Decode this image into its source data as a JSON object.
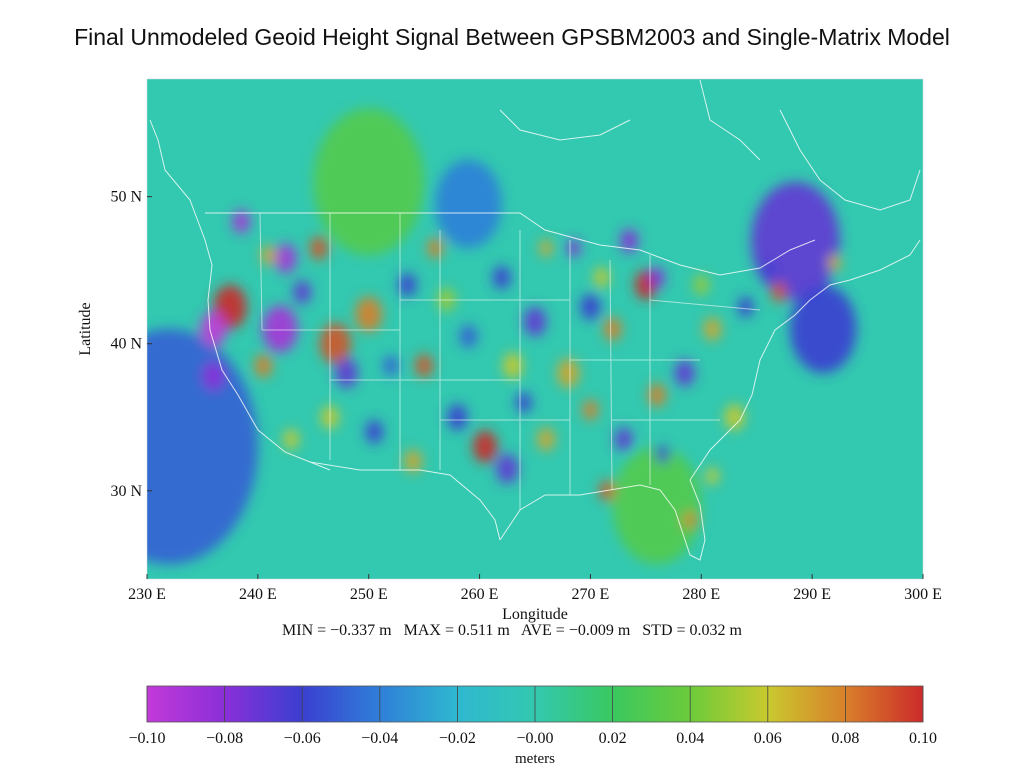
{
  "title": "Final Unmodeled Geoid Height Signal Between GPSBM2003 and Single-Matrix Model",
  "chart_data": {
    "type": "heatmap",
    "title": "Final Unmodeled Geoid Height Signal Between GPSBM2003 and Single-Matrix Model",
    "xlabel": "Longitude",
    "ylabel": "Latitude",
    "x_ticks": [
      "230 E",
      "240 E",
      "250 E",
      "260 E",
      "270 E",
      "280 E",
      "290 E",
      "300 E"
    ],
    "x_tick_values": [
      230,
      240,
      250,
      260,
      270,
      280,
      290,
      300
    ],
    "y_ticks": [
      "50 N",
      "40 N",
      "30 N"
    ],
    "y_tick_values": [
      50,
      40,
      30
    ],
    "xlim": [
      230,
      300
    ],
    "ylim": [
      24,
      58
    ],
    "stats": {
      "min": "MIN = −0.337 m",
      "max": "MAX = 0.511 m",
      "ave": "AVE = −0.009 m",
      "std": "STD = 0.032 m"
    },
    "colorbar": {
      "label": "meters",
      "range": [
        -0.1,
        0.1
      ],
      "ticks": [
        "−0.10",
        "−0.08",
        "−0.06",
        "−0.04",
        "−0.02",
        "−0.00",
        "0.02",
        "0.04",
        "0.06",
        "0.08",
        "0.10"
      ],
      "tick_values": [
        -0.1,
        -0.08,
        -0.06,
        -0.04,
        -0.02,
        0.0,
        0.02,
        0.04,
        0.06,
        0.08,
        0.1
      ],
      "colors": [
        "#c23ad8",
        "#8a2fd8",
        "#3a3fd0",
        "#2f7fd8",
        "#2fb8d0",
        "#33c8b0",
        "#3ac860",
        "#6ccb3a",
        "#c9c92e",
        "#d8802a",
        "#cc2a2a"
      ]
    },
    "background_value": 0.0,
    "blobs": [
      {
        "lon": 232.0,
        "lat": 33.0,
        "value": -0.05,
        "r": 8.0
      },
      {
        "lon": 288.5,
        "lat": 47.0,
        "value": -0.07,
        "r": 4.0
      },
      {
        "lon": 291.0,
        "lat": 41.0,
        "value": -0.06,
        "r": 3.0
      },
      {
        "lon": 259.0,
        "lat": 49.5,
        "value": -0.04,
        "r": 3.0
      },
      {
        "lon": 250.0,
        "lat": 51.0,
        "value": 0.03,
        "r": 5.0
      },
      {
        "lon": 276.0,
        "lat": 29.0,
        "value": 0.03,
        "r": 4.0
      },
      {
        "lon": 275.0,
        "lat": 44.0,
        "value": 0.1,
        "r": 1.0
      },
      {
        "lon": 260.5,
        "lat": 33.0,
        "value": 0.1,
        "r": 1.1
      },
      {
        "lon": 237.5,
        "lat": 42.5,
        "value": 0.1,
        "r": 1.5
      },
      {
        "lon": 242.0,
        "lat": 41.0,
        "value": -0.09,
        "r": 1.6
      },
      {
        "lon": 236.0,
        "lat": 41.0,
        "value": -0.1,
        "r": 1.2
      },
      {
        "lon": 242.5,
        "lat": 45.8,
        "value": -0.09,
        "r": 1.0
      },
      {
        "lon": 238.5,
        "lat": 48.3,
        "value": -0.09,
        "r": 0.8
      },
      {
        "lon": 236.0,
        "lat": 37.8,
        "value": -0.08,
        "r": 1.0
      },
      {
        "lon": 245.5,
        "lat": 46.5,
        "value": 0.09,
        "r": 0.8
      },
      {
        "lon": 247.0,
        "lat": 40.0,
        "value": 0.09,
        "r": 1.4
      },
      {
        "lon": 250.0,
        "lat": 42.0,
        "value": 0.08,
        "r": 1.2
      },
      {
        "lon": 248.0,
        "lat": 38.0,
        "value": -0.07,
        "r": 1.0
      },
      {
        "lon": 255.0,
        "lat": 38.5,
        "value": 0.09,
        "r": 0.8
      },
      {
        "lon": 256.0,
        "lat": 46.5,
        "value": 0.08,
        "r": 0.7
      },
      {
        "lon": 262.0,
        "lat": 44.5,
        "value": -0.06,
        "r": 0.8
      },
      {
        "lon": 265.0,
        "lat": 41.5,
        "value": -0.07,
        "r": 1.0
      },
      {
        "lon": 268.0,
        "lat": 38.0,
        "value": 0.07,
        "r": 1.0
      },
      {
        "lon": 270.0,
        "lat": 42.5,
        "value": -0.06,
        "r": 0.9
      },
      {
        "lon": 273.5,
        "lat": 47.0,
        "value": -0.08,
        "r": 0.8
      },
      {
        "lon": 272.0,
        "lat": 41.0,
        "value": 0.08,
        "r": 0.8
      },
      {
        "lon": 276.0,
        "lat": 44.5,
        "value": -0.08,
        "r": 0.7
      },
      {
        "lon": 278.5,
        "lat": 38.0,
        "value": -0.07,
        "r": 0.9
      },
      {
        "lon": 276.0,
        "lat": 36.5,
        "value": 0.08,
        "r": 0.8
      },
      {
        "lon": 281.0,
        "lat": 41.0,
        "value": 0.07,
        "r": 0.8
      },
      {
        "lon": 284.0,
        "lat": 42.5,
        "value": -0.06,
        "r": 0.7
      },
      {
        "lon": 283.0,
        "lat": 35.0,
        "value": 0.06,
        "r": 0.9
      },
      {
        "lon": 262.5,
        "lat": 31.5,
        "value": -0.07,
        "r": 1.0
      },
      {
        "lon": 266.0,
        "lat": 33.5,
        "value": 0.07,
        "r": 0.8
      },
      {
        "lon": 258.0,
        "lat": 35.0,
        "value": -0.06,
        "r": 0.9
      },
      {
        "lon": 254.0,
        "lat": 32.0,
        "value": 0.07,
        "r": 0.8
      },
      {
        "lon": 246.5,
        "lat": 35.0,
        "value": 0.06,
        "r": 0.8
      },
      {
        "lon": 250.5,
        "lat": 34.0,
        "value": -0.06,
        "r": 0.8
      },
      {
        "lon": 271.5,
        "lat": 30.0,
        "value": 0.09,
        "r": 0.7
      },
      {
        "lon": 273.0,
        "lat": 33.5,
        "value": -0.07,
        "r": 0.8
      },
      {
        "lon": 276.5,
        "lat": 32.5,
        "value": -0.06,
        "r": 0.6
      },
      {
        "lon": 270.0,
        "lat": 35.5,
        "value": 0.08,
        "r": 0.7
      },
      {
        "lon": 280.0,
        "lat": 44.0,
        "value": 0.05,
        "r": 0.7
      },
      {
        "lon": 287.0,
        "lat": 43.5,
        "value": 0.09,
        "r": 0.7
      },
      {
        "lon": 286.0,
        "lat": 45.0,
        "value": -0.06,
        "r": 0.6
      },
      {
        "lon": 292.0,
        "lat": 45.5,
        "value": 0.07,
        "r": 0.6
      },
      {
        "lon": 268.5,
        "lat": 46.5,
        "value": -0.08,
        "r": 0.6
      },
      {
        "lon": 266.0,
        "lat": 46.5,
        "value": 0.07,
        "r": 0.6
      },
      {
        "lon": 263.0,
        "lat": 38.5,
        "value": 0.06,
        "r": 0.9
      },
      {
        "lon": 259.0,
        "lat": 40.5,
        "value": -0.05,
        "r": 0.8
      },
      {
        "lon": 253.5,
        "lat": 44.0,
        "value": -0.06,
        "r": 0.8
      },
      {
        "lon": 244.0,
        "lat": 43.5,
        "value": -0.07,
        "r": 0.8
      },
      {
        "lon": 240.5,
        "lat": 38.5,
        "value": 0.08,
        "r": 0.8
      },
      {
        "lon": 243.0,
        "lat": 33.5,
        "value": 0.06,
        "r": 0.7
      },
      {
        "lon": 281.0,
        "lat": 31.0,
        "value": 0.06,
        "r": 0.6
      },
      {
        "lon": 279.0,
        "lat": 28.0,
        "value": 0.08,
        "r": 0.6
      },
      {
        "lon": 271.0,
        "lat": 44.5,
        "value": 0.06,
        "r": 0.7
      },
      {
        "lon": 264.0,
        "lat": 36.0,
        "value": -0.06,
        "r": 0.7
      },
      {
        "lon": 257.0,
        "lat": 43.0,
        "value": 0.05,
        "r": 0.8
      },
      {
        "lon": 252.0,
        "lat": 38.5,
        "value": -0.05,
        "r": 0.7
      },
      {
        "lon": 241.0,
        "lat": 46.0,
        "value": 0.07,
        "r": 0.7
      }
    ]
  }
}
